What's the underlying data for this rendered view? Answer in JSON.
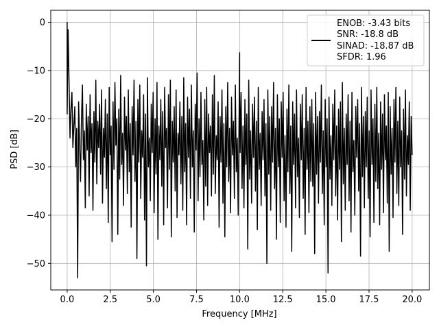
{
  "chart_data": {
    "type": "line",
    "title": "",
    "xlabel": "Frequency [MHz]",
    "ylabel": "PSD [dB]",
    "xlim": [
      -0.95,
      21.0
    ],
    "ylim": [
      -55.5,
      2.5
    ],
    "xticks": [
      0.0,
      2.5,
      5.0,
      7.5,
      10.0,
      12.5,
      15.0,
      17.5,
      20.0
    ],
    "xtick_labels": [
      "0.0",
      "2.5",
      "5.0",
      "7.5",
      "10.0",
      "12.5",
      "15.0",
      "17.5",
      "20.0"
    ],
    "yticks": [
      0,
      -10,
      -20,
      -30,
      -40,
      -50
    ],
    "ytick_labels": [
      "0",
      "−10",
      "−20",
      "−30",
      "−40",
      "−50"
    ],
    "grid": true,
    "legend_position": "top-right",
    "legend_lines": [
      "ENOB: -3.43 bits",
      "SNR: -18.8 dB",
      "SINAD: -18.87 dB",
      "SFDR: 1.96"
    ],
    "series": [
      {
        "color": "#000000",
        "x_range": [
          0.0,
          20.0
        ],
        "values": [
          -19.0,
          -1.5,
          -12.5,
          -24.0,
          -18.0,
          -14.5,
          -26.0,
          -21.5,
          -17.5,
          -30.0,
          -22.0,
          -53.0,
          -16.5,
          -25.0,
          -33.0,
          -20.0,
          -13.0,
          -28.5,
          -22.5,
          -38.5,
          -17.0,
          -26.5,
          -19.5,
          -36.0,
          -15.0,
          -27.0,
          -21.0,
          -39.0,
          -18.5,
          -29.0,
          -12.0,
          -33.5,
          -20.5,
          -26.0,
          -17.0,
          -31.5,
          -14.0,
          -37.5,
          -22.0,
          -28.0,
          -16.0,
          -34.5,
          -19.0,
          -41.5,
          -13.5,
          -27.5,
          -21.5,
          -45.5,
          -16.5,
          -30.5,
          -12.5,
          -25.5,
          -20.0,
          -44.0,
          -18.0,
          -32.5,
          -11.0,
          -29.5,
          -23.0,
          -38.0,
          -15.5,
          -26.5,
          -19.5,
          -35.5,
          -14.0,
          -31.0,
          -21.0,
          -42.5,
          -17.5,
          -27.5,
          -12.0,
          -33.0,
          -20.5,
          -49.0,
          -16.0,
          -29.0,
          -13.0,
          -36.5,
          -22.5,
          -28.0,
          -15.0,
          -41.0,
          -19.0,
          -50.5,
          -11.5,
          -30.0,
          -24.0,
          -37.0,
          -17.0,
          -27.0,
          -14.5,
          -39.5,
          -20.0,
          -31.5,
          -12.5,
          -45.0,
          -21.5,
          -28.5,
          -16.0,
          -34.0,
          -18.5,
          -42.0,
          -13.5,
          -26.0,
          -22.0,
          -38.5,
          -15.0,
          -30.5,
          -12.0,
          -44.5,
          -20.5,
          -29.0,
          -17.5,
          -35.0,
          -14.0,
          -40.5,
          -23.0,
          -27.5,
          -16.5,
          -33.5,
          -19.5,
          -39.0,
          -11.5,
          -31.0,
          -21.0,
          -42.0,
          -15.5,
          -28.0,
          -18.0,
          -36.5,
          -13.0,
          -30.0,
          -22.5,
          -43.5,
          -17.0,
          -26.5,
          -10.5,
          -37.0,
          -20.0,
          -32.0,
          -14.5,
          -29.5,
          -24.5,
          -41.0,
          -16.0,
          -34.0,
          -13.5,
          -38.0,
          -19.0,
          -27.0,
          -21.5,
          -36.0,
          -15.0,
          -31.5,
          -11.0,
          -35.5,
          -23.5,
          -28.5,
          -16.5,
          -42.5,
          -19.5,
          -29.0,
          -14.0,
          -37.5,
          -21.0,
          -44.5,
          -17.5,
          -30.0,
          -12.5,
          -33.0,
          -22.0,
          -39.5,
          -15.5,
          -27.5,
          -20.5,
          -36.5,
          -13.0,
          -31.0,
          -24.0,
          -40.0,
          -18.0,
          -27.0,
          -14.5,
          -34.5,
          -21.5,
          -38.5,
          -16.0,
          -29.5,
          -19.0,
          -47.0,
          -12.0,
          -32.5,
          -22.5,
          -37.5,
          -17.0,
          -28.0,
          -15.5,
          -35.0,
          -20.5,
          -43.0,
          -13.5,
          -30.5,
          -23.0,
          -38.0,
          -18.5,
          -28.5,
          -16.0,
          -36.0,
          -21.0,
          -50.0,
          -14.0,
          -31.5,
          -19.5,
          -39.0,
          -17.5,
          -29.0,
          -12.5,
          -34.5,
          -22.0,
          -45.0,
          -15.0,
          -30.0,
          -20.0,
          -41.5,
          -16.5,
          -28.0,
          -14.5,
          -37.0,
          -23.5,
          -42.5,
          -18.0,
          -31.0,
          -13.0,
          -35.5,
          -21.5,
          -47.5,
          -16.5,
          -29.5,
          -19.0,
          -38.5,
          -14.0,
          -32.0,
          -24.0,
          -40.5,
          -17.0,
          -28.5,
          -15.0,
          -36.5,
          -22.0,
          -44.0,
          -13.5,
          -30.5,
          -20.5,
          -39.5,
          -17.5,
          -33.0,
          -16.0,
          -34.0,
          -21.0,
          -48.0,
          -14.5,
          -31.5,
          -19.5,
          -37.5,
          -18.5,
          -29.0,
          -13.0,
          -35.5,
          -22.5,
          -42.0,
          -16.0,
          -30.0,
          -20.0,
          -52.0,
          -15.5,
          -32.5,
          -23.5,
          -38.0,
          -17.0,
          -28.5,
          -14.0,
          -36.0,
          -21.5,
          -41.0,
          -18.0,
          -30.5,
          -16.5,
          -45.5,
          -12.5,
          -33.5,
          -22.0,
          -39.0,
          -19.0,
          -29.5,
          -15.0,
          -37.0,
          -20.5,
          -43.5,
          -14.5,
          -31.0,
          -24.5,
          -40.0,
          -17.5,
          -28.0,
          -16.0,
          -35.0,
          -21.0,
          -48.5,
          -13.5,
          -32.0,
          -19.5,
          -38.5,
          -18.5,
          -30.0,
          -15.5,
          -36.5,
          -22.5,
          -44.5,
          -14.0,
          -29.5,
          -20.0,
          -41.5,
          -17.0,
          -33.0,
          -13.5,
          -34.5,
          -23.0,
          -42.0,
          -16.5,
          -30.5,
          -19.0,
          -39.5,
          -15.0,
          -28.5,
          -21.5,
          -37.5,
          -14.5,
          -47.5,
          -17.5,
          -31.5,
          -22.0,
          -40.5,
          -16.0,
          -29.0,
          -13.5,
          -35.5,
          -20.5,
          -38.0,
          -15.5,
          -30.0,
          -22.5,
          -44.0,
          -18.0,
          -32.5,
          -14.0,
          -36.0,
          -23.5,
          -29.5,
          -16.5,
          -39.0,
          -19.5,
          -27.5
        ],
        "peak_annotations": [
          {
            "x": 0.0,
            "y": 0.0
          },
          {
            "x": 10.0,
            "y": -6.3
          }
        ]
      }
    ]
  }
}
